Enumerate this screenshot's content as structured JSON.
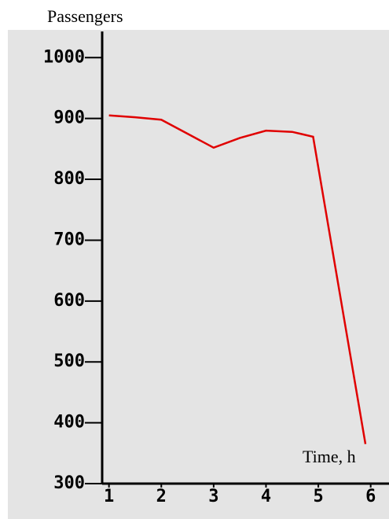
{
  "chart_data": {
    "type": "line",
    "y_label": "Passengers",
    "x_label": "Time, h",
    "x": [
      1,
      1.5,
      2,
      2.5,
      3,
      3.5,
      4,
      4.5,
      4.9,
      5.9
    ],
    "values": [
      905,
      902,
      898,
      875,
      852,
      868,
      880,
      878,
      870,
      365
    ],
    "color": "#e00000",
    "xlim": [
      0.87,
      6.35
    ],
    "xticks": [
      1,
      2,
      3,
      4,
      5,
      6
    ],
    "ylim": [
      300,
      1043
    ],
    "yticks": [
      300,
      400,
      500,
      600,
      700,
      800,
      900,
      1000
    ]
  }
}
